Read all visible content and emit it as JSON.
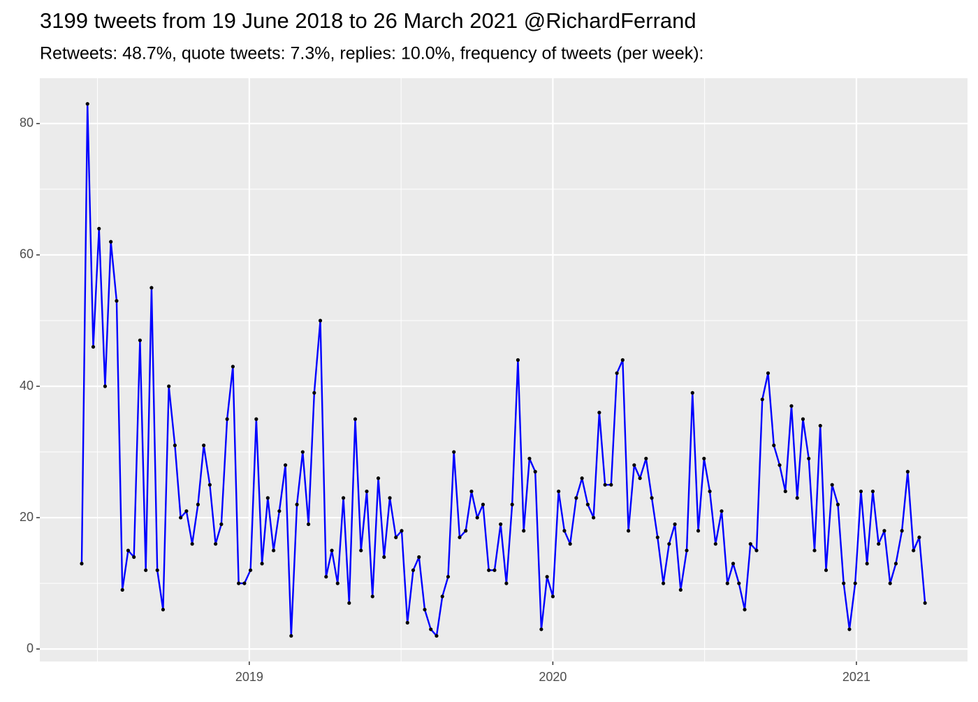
{
  "chart_data": {
    "type": "line",
    "title": "3199 tweets from 19 June 2018 to 26 March 2021 @RichardFerrand",
    "subtitle": "Retweets: 48.7%, quote tweets: 7.3%, replies: 10.0%, frequency of tweets (per week):",
    "x": [
      2018.448,
      2018.467,
      2018.486,
      2018.505,
      2018.525,
      2018.544,
      2018.563,
      2018.582,
      2018.601,
      2018.62,
      2018.64,
      2018.659,
      2018.678,
      2018.697,
      2018.716,
      2018.735,
      2018.755,
      2018.774,
      2018.793,
      2018.812,
      2018.831,
      2018.85,
      2018.87,
      2018.889,
      2018.908,
      2018.927,
      2018.946,
      2018.965,
      2018.984,
      2019.004,
      2019.023,
      2019.042,
      2019.061,
      2019.08,
      2019.099,
      2019.119,
      2019.138,
      2019.157,
      2019.176,
      2019.195,
      2019.214,
      2019.234,
      2019.253,
      2019.272,
      2019.291,
      2019.31,
      2019.329,
      2019.349,
      2019.368,
      2019.387,
      2019.406,
      2019.425,
      2019.444,
      2019.463,
      2019.483,
      2019.502,
      2019.521,
      2019.54,
      2019.559,
      2019.578,
      2019.598,
      2019.617,
      2019.636,
      2019.655,
      2019.674,
      2019.693,
      2019.713,
      2019.732,
      2019.751,
      2019.77,
      2019.789,
      2019.808,
      2019.828,
      2019.847,
      2019.866,
      2019.885,
      2019.904,
      2019.923,
      2019.942,
      2019.962,
      2019.981,
      2020.0,
      2020.019,
      2020.038,
      2020.057,
      2020.077,
      2020.096,
      2020.115,
      2020.134,
      2020.153,
      2020.172,
      2020.192,
      2020.211,
      2020.23,
      2020.249,
      2020.268,
      2020.287,
      2020.307,
      2020.326,
      2020.345,
      2020.364,
      2020.383,
      2020.402,
      2020.421,
      2020.441,
      2020.46,
      2020.479,
      2020.498,
      2020.517,
      2020.536,
      2020.556,
      2020.575,
      2020.594,
      2020.613,
      2020.632,
      2020.651,
      2020.671,
      2020.69,
      2020.709,
      2020.728,
      2020.747,
      2020.766,
      2020.786,
      2020.805,
      2020.824,
      2020.843,
      2020.862,
      2020.881,
      2020.9,
      2020.92,
      2020.939,
      2020.958,
      2020.977,
      2020.996,
      2021.015,
      2021.035,
      2021.054,
      2021.073,
      2021.092,
      2021.111,
      2021.13,
      2021.15,
      2021.169,
      2021.188,
      2021.207,
      2021.226
    ],
    "values": [
      13,
      83,
      46,
      64,
      40,
      62,
      53,
      9,
      15,
      14,
      47,
      12,
      55,
      12,
      6,
      40,
      31,
      20,
      21,
      16,
      22,
      31,
      25,
      16,
      19,
      35,
      43,
      10,
      10,
      12,
      35,
      13,
      23,
      15,
      21,
      28,
      2,
      22,
      30,
      19,
      39,
      50,
      11,
      15,
      10,
      23,
      7,
      35,
      15,
      24,
      8,
      26,
      14,
      23,
      17,
      18,
      4,
      12,
      14,
      6,
      3,
      2,
      8,
      11,
      30,
      17,
      18,
      24,
      20,
      22,
      12,
      12,
      19,
      10,
      22,
      44,
      18,
      29,
      27,
      3,
      11,
      8,
      24,
      18,
      16,
      23,
      26,
      22,
      20,
      36,
      25,
      25,
      42,
      44,
      18,
      28,
      26,
      29,
      23,
      17,
      10,
      16,
      19,
      9,
      15,
      39,
      18,
      29,
      24,
      16,
      21,
      10,
      13,
      10,
      6,
      16,
      15,
      38,
      42,
      31,
      28,
      24,
      37,
      23,
      35,
      29,
      15,
      34,
      12,
      25,
      22,
      10,
      3,
      10,
      24,
      13,
      24,
      16,
      18,
      10,
      13,
      18,
      27,
      15,
      17,
      7
    ],
    "color": "#0000ff",
    "point_color": "#000000",
    "xlim": [
      2018.31,
      2021.366
    ],
    "xticks": [
      2019,
      2020,
      2021
    ],
    "ylim": [
      -1.9,
      86.9
    ],
    "yticks": [
      0,
      20,
      40,
      60,
      80
    ],
    "grid": true,
    "minor_grid": true
  }
}
